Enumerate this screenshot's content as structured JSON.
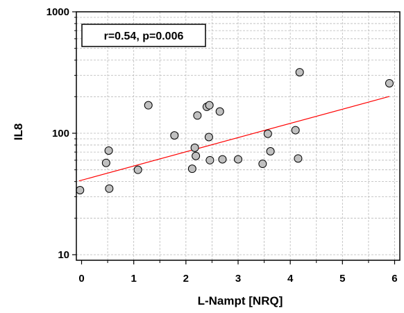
{
  "chart_data": {
    "type": "scatter",
    "xlabel": "L-Nampt [NRQ]",
    "ylabel": "IL8",
    "xlim": [
      -0.1,
      6.1
    ],
    "ylim": [
      9,
      1000
    ],
    "y_scale": "log",
    "x_ticks": [
      0,
      1,
      2,
      3,
      4,
      5,
      6
    ],
    "y_ticks": [
      10,
      100,
      1000
    ],
    "grid": true,
    "annotation": "r=0.54, p=0.006",
    "marker_fill": "#c0c0c0",
    "marker_edge": "#000000",
    "fit_line_color": "#ff0000",
    "fit_line": [
      {
        "x": -0.05,
        "y": 40.5
      },
      {
        "x": 5.9,
        "y": 201
      }
    ],
    "points": [
      {
        "x": -0.03,
        "y": 34
      },
      {
        "x": 0.47,
        "y": 57
      },
      {
        "x": 0.52,
        "y": 72
      },
      {
        "x": 0.53,
        "y": 35
      },
      {
        "x": 1.08,
        "y": 50
      },
      {
        "x": 1.28,
        "y": 170
      },
      {
        "x": 1.78,
        "y": 96
      },
      {
        "x": 2.12,
        "y": 51
      },
      {
        "x": 2.17,
        "y": 76
      },
      {
        "x": 2.19,
        "y": 65
      },
      {
        "x": 2.22,
        "y": 140
      },
      {
        "x": 2.4,
        "y": 165
      },
      {
        "x": 2.45,
        "y": 170
      },
      {
        "x": 2.44,
        "y": 93
      },
      {
        "x": 2.46,
        "y": 60
      },
      {
        "x": 2.65,
        "y": 151
      },
      {
        "x": 2.7,
        "y": 61
      },
      {
        "x": 3.0,
        "y": 61
      },
      {
        "x": 3.47,
        "y": 56
      },
      {
        "x": 3.57,
        "y": 99
      },
      {
        "x": 3.62,
        "y": 71
      },
      {
        "x": 4.1,
        "y": 106
      },
      {
        "x": 4.15,
        "y": 62
      },
      {
        "x": 4.18,
        "y": 318
      },
      {
        "x": 5.9,
        "y": 258
      }
    ]
  }
}
